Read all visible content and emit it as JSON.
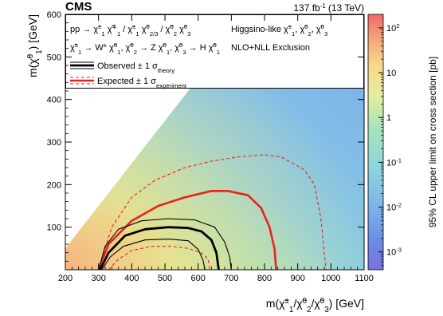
{
  "header": {
    "experiment": "CMS",
    "luminosity": "137 fb",
    "luminosity_exp": "-1",
    "energy": "(13 TeV)"
  },
  "chart_data": {
    "type": "heatmap",
    "title": "",
    "xlabel": {
      "main": "m(",
      "sym": "χ̃",
      "sup": "±",
      "sub": "1",
      "rest1": "/",
      "sym2": "χ̃",
      "sup2": "0",
      "sub2": "2",
      "rest2": "/",
      "sym3": "χ̃",
      "sup3": "0",
      "sub3": "3",
      "unit": ") [GeV]"
    },
    "ylabel": {
      "main": "m(",
      "sym": "χ̃",
      "sup": "0",
      "sub": "1",
      "unit": ") [GeV]"
    },
    "zlabel": "95% CL upper limit on cross section [pb]",
    "xlim": [
      200,
      1100
    ],
    "ylim": [
      0,
      600
    ],
    "xticks": [
      200,
      300,
      400,
      500,
      600,
      700,
      800,
      900,
      1000,
      1100
    ],
    "yticks": [
      100,
      200,
      300,
      400,
      500,
      600
    ],
    "zscale": "log",
    "zlim": [
      0.0004,
      200
    ],
    "zticks": [
      {
        "v": 100,
        "base": "10",
        "exp": "2"
      },
      {
        "v": 10,
        "base": "10",
        "exp": ""
      },
      {
        "v": 1,
        "base": "1",
        "exp": ""
      },
      {
        "v": 0.1,
        "base": "10",
        "exp": "-1"
      },
      {
        "v": 0.01,
        "base": "10",
        "exp": "-2"
      },
      {
        "v": 0.001,
        "base": "10",
        "exp": "-3"
      }
    ],
    "diagonal_boundary": "m(χ̃0_1) = m(χ̃±_1) - 150",
    "legend": {
      "process_line1": "pp → χ̃±1 χ̃∓1 / χ̃±1 χ̃02/3 / χ̃02 χ̃03",
      "process_line2": "χ̃±1 → W± χ̃01, χ̃02 → Z χ̃01, χ̃03 → H χ̃01",
      "model": "Higgsino-like χ̃±1, χ̃02, χ̃03",
      "xsec": "NLO+NLL Exclusion",
      "observed": "Observed ± 1 σtheory",
      "expected": "Expected ± 1 σexperiment"
    },
    "curves": {
      "observed": [
        [
          305,
          0
        ],
        [
          330,
          40
        ],
        [
          380,
          80
        ],
        [
          440,
          95
        ],
        [
          510,
          100
        ],
        [
          570,
          98
        ],
        [
          610,
          90
        ],
        [
          640,
          70
        ],
        [
          655,
          40
        ],
        [
          662,
          0
        ]
      ],
      "observed_plus": [
        [
          300,
          0
        ],
        [
          320,
          55
        ],
        [
          360,
          95
        ],
        [
          430,
          115
        ],
        [
          510,
          120
        ],
        [
          590,
          117
        ],
        [
          650,
          100
        ],
        [
          680,
          65
        ],
        [
          695,
          30
        ],
        [
          700,
          0
        ]
      ],
      "observed_minus": [
        [
          310,
          0
        ],
        [
          335,
          30
        ],
        [
          375,
          55
        ],
        [
          440,
          70
        ],
        [
          510,
          72
        ],
        [
          570,
          68
        ],
        [
          600,
          48
        ],
        [
          615,
          22
        ],
        [
          620,
          0
        ]
      ],
      "expected": [
        [
          300,
          0
        ],
        [
          330,
          60
        ],
        [
          400,
          115
        ],
        [
          480,
          150
        ],
        [
          560,
          170
        ],
        [
          640,
          185
        ],
        [
          690,
          185
        ],
        [
          750,
          175
        ],
        [
          790,
          145
        ],
        [
          815,
          100
        ],
        [
          830,
          50
        ],
        [
          835,
          0
        ]
      ],
      "expected_plus": [
        [
          300,
          0
        ],
        [
          340,
          100
        ],
        [
          400,
          170
        ],
        [
          470,
          210
        ],
        [
          560,
          240
        ],
        [
          640,
          255
        ],
        [
          720,
          265
        ],
        [
          800,
          270
        ],
        [
          850,
          265
        ],
        [
          920,
          235
        ],
        [
          950,
          200
        ],
        [
          970,
          120
        ],
        [
          980,
          40
        ],
        [
          985,
          0
        ]
      ],
      "expected_minus": [
        [
          330,
          0
        ],
        [
          360,
          25
        ],
        [
          400,
          45
        ],
        [
          460,
          55
        ],
        [
          520,
          55
        ],
        [
          570,
          50
        ],
        [
          610,
          40
        ],
        [
          630,
          25
        ],
        [
          635,
          0
        ]
      ]
    }
  }
}
